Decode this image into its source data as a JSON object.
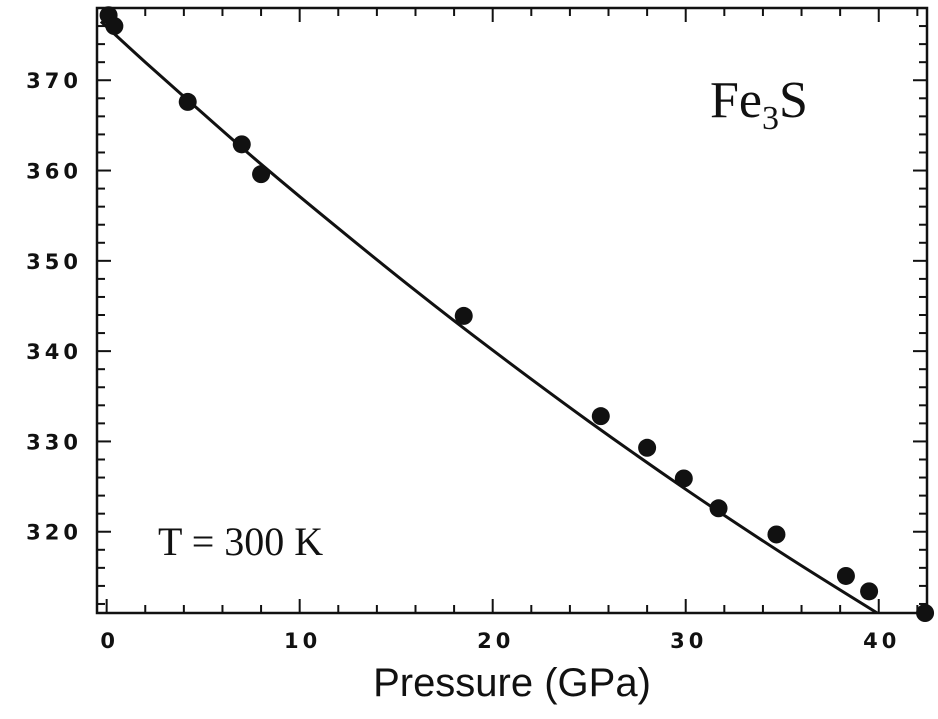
{
  "chart_data": {
    "type": "scatter",
    "title": "",
    "xlabel": "Pressure (GPa)",
    "ylabel": "",
    "xlim": [
      -0.5,
      42.5
    ],
    "ylim": [
      311,
      378
    ],
    "x_ticks": [
      0,
      10,
      20,
      30,
      40
    ],
    "y_ticks": [
      320,
      330,
      340,
      350,
      360,
      370
    ],
    "grid": false,
    "legend": "none",
    "annotations": {
      "formula_main": "Fe",
      "formula_sub": "3",
      "formula_end": "S",
      "temperature": "T = 300 K"
    },
    "series": [
      {
        "kind": "points",
        "x": [
          0.1,
          0.4,
          4.2,
          7.0,
          8.0,
          18.5,
          25.6,
          28.0,
          29.9,
          31.7,
          34.7,
          38.3,
          39.5,
          42.4
        ],
        "y": [
          377.2,
          376.0,
          367.6,
          362.9,
          359.6,
          343.9,
          332.8,
          329.3,
          325.9,
          322.6,
          319.7,
          315.1,
          313.4,
          311.0
        ]
      },
      {
        "kind": "fit_curve",
        "x": [
          -0.3,
          2,
          5,
          8,
          12,
          16,
          20,
          25,
          30,
          35,
          40,
          42.5
        ],
        "y": [
          376.5,
          372.0,
          366.3,
          360.7,
          353.6,
          346.7,
          340.1,
          332.2,
          324.7,
          317.6,
          310.9,
          307.7
        ]
      }
    ]
  }
}
